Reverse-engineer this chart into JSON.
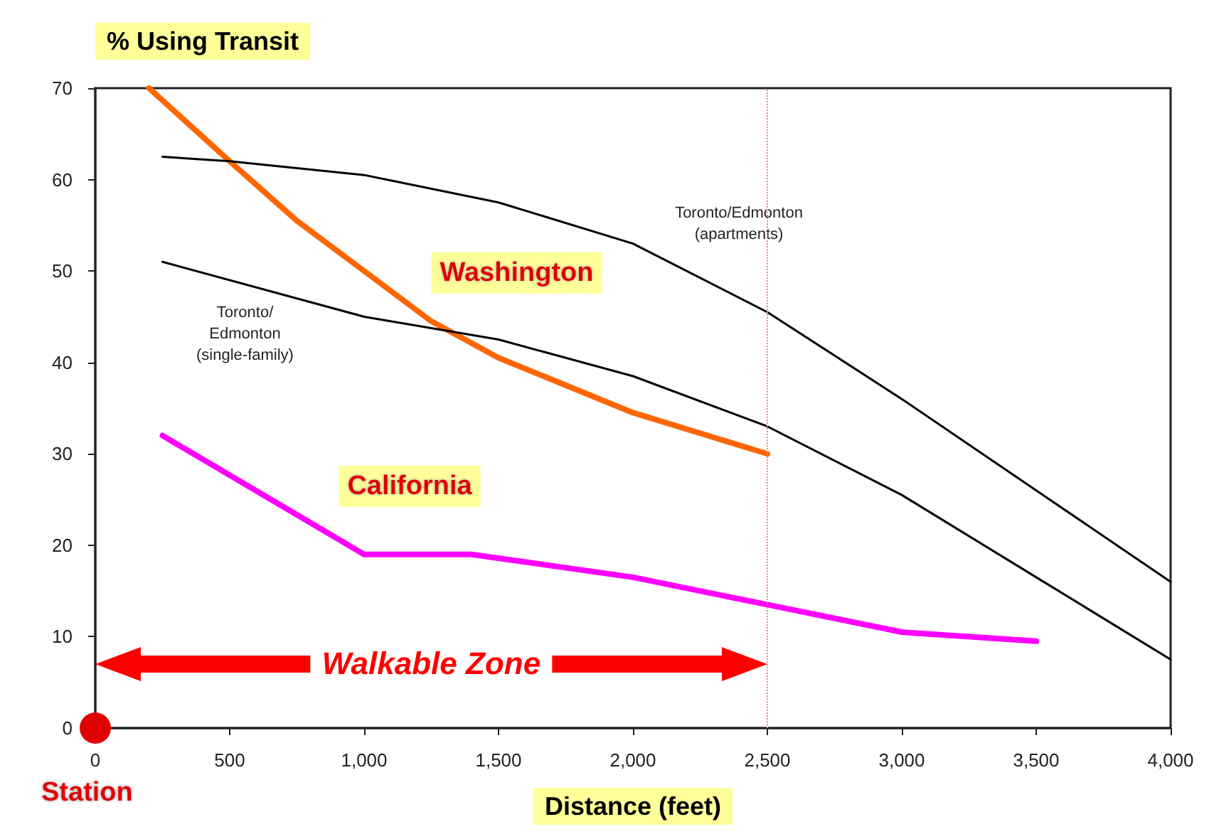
{
  "chart_data": {
    "type": "line",
    "ylabel": "% Using Transit",
    "xlabel": "Distance (feet)",
    "xlim": [
      0,
      4000
    ],
    "ylim": [
      0,
      70
    ],
    "xticks": [
      0,
      500,
      {
        "value": 1000,
        "label": "1,000"
      },
      {
        "value": 1500,
        "label": "1,500"
      },
      {
        "value": 2000,
        "label": "2,000"
      },
      {
        "value": 2500,
        "label": "2,500"
      },
      {
        "value": 3000,
        "label": "3,000"
      },
      {
        "value": 3500,
        "label": "3,500"
      },
      {
        "value": 4000,
        "label": "4,000"
      }
    ],
    "yticks": [
      0,
      10,
      20,
      30,
      40,
      50,
      60,
      70
    ],
    "grid": false,
    "legend": false,
    "marker": "none",
    "line_style": "solid",
    "series": [
      {
        "name": "Washington",
        "color": "#ff6600",
        "x": [
          200,
          500,
          750,
          1000,
          1250,
          1500,
          2000,
          2500
        ],
        "values": [
          70,
          62,
          55.5,
          50,
          44.5,
          40.5,
          34.5,
          30
        ]
      },
      {
        "name": "California",
        "color": "#ff00ff",
        "x": [
          250,
          1000,
          1400,
          2000,
          2500,
          3000,
          3500
        ],
        "values": [
          32,
          19,
          19,
          16.5,
          13.5,
          10.5,
          9.5
        ]
      },
      {
        "name": "Toronto/Edmonton\n(apartments)",
        "color": "#000000",
        "x": [
          250,
          500,
          1000,
          1500,
          2000,
          2500,
          3000,
          3500,
          4000
        ],
        "values": [
          62.5,
          62,
          60.5,
          57.5,
          53,
          45.5,
          36,
          26,
          16
        ]
      },
      {
        "name": "Toronto/\nEdmonton\n(single-family)",
        "color": "#000000",
        "x": [
          250,
          750,
          1000,
          1500,
          2000,
          2500,
          3000,
          3500,
          4000
        ],
        "values": [
          51,
          47,
          45,
          42.5,
          38.5,
          33,
          25.5,
          16.5,
          7.5
        ]
      }
    ],
    "ref_lines": [
      {
        "axis": "x",
        "value": 2500,
        "color": "#ff8080",
        "line_style": "dotted"
      }
    ],
    "annotations": [
      {
        "text": "Station",
        "x": 0,
        "y": 0
      },
      "Walkable Zone"
    ]
  }
}
